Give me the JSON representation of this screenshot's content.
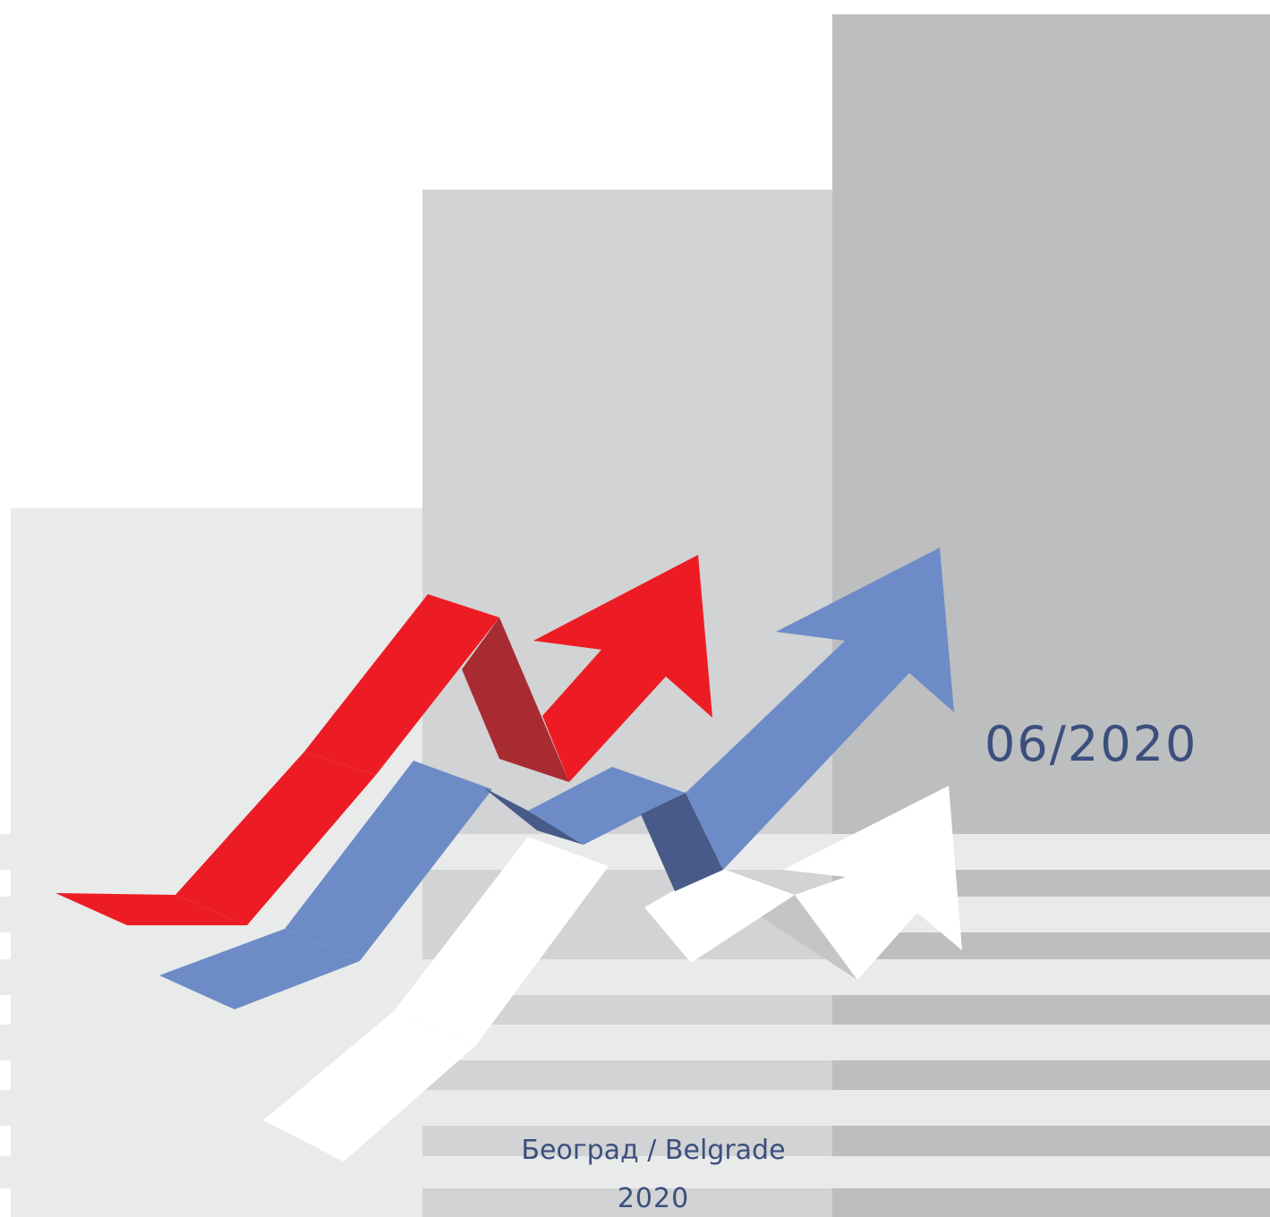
{
  "cover": {
    "issue": "06/2020",
    "place": "Београд / Belgrade",
    "year": "2020"
  },
  "colors": {
    "text": "#3b4f7d",
    "bar_light": "#e9eaea",
    "bar_mid": "#d1d3d4",
    "bar_dark": "#bcbec0",
    "arrow_red": "#ed1c24",
    "arrow_red_shade": "#a92b32",
    "arrow_blue": "#6d8cc7",
    "arrow_blue_shade": "#485b88",
    "arrow_white": "#ffffff",
    "arrow_white_shade": "#c4c5c7"
  },
  "icons": [
    "bar-column-icon",
    "red-arrow-icon",
    "blue-arrow-icon",
    "white-arrow-icon"
  ]
}
